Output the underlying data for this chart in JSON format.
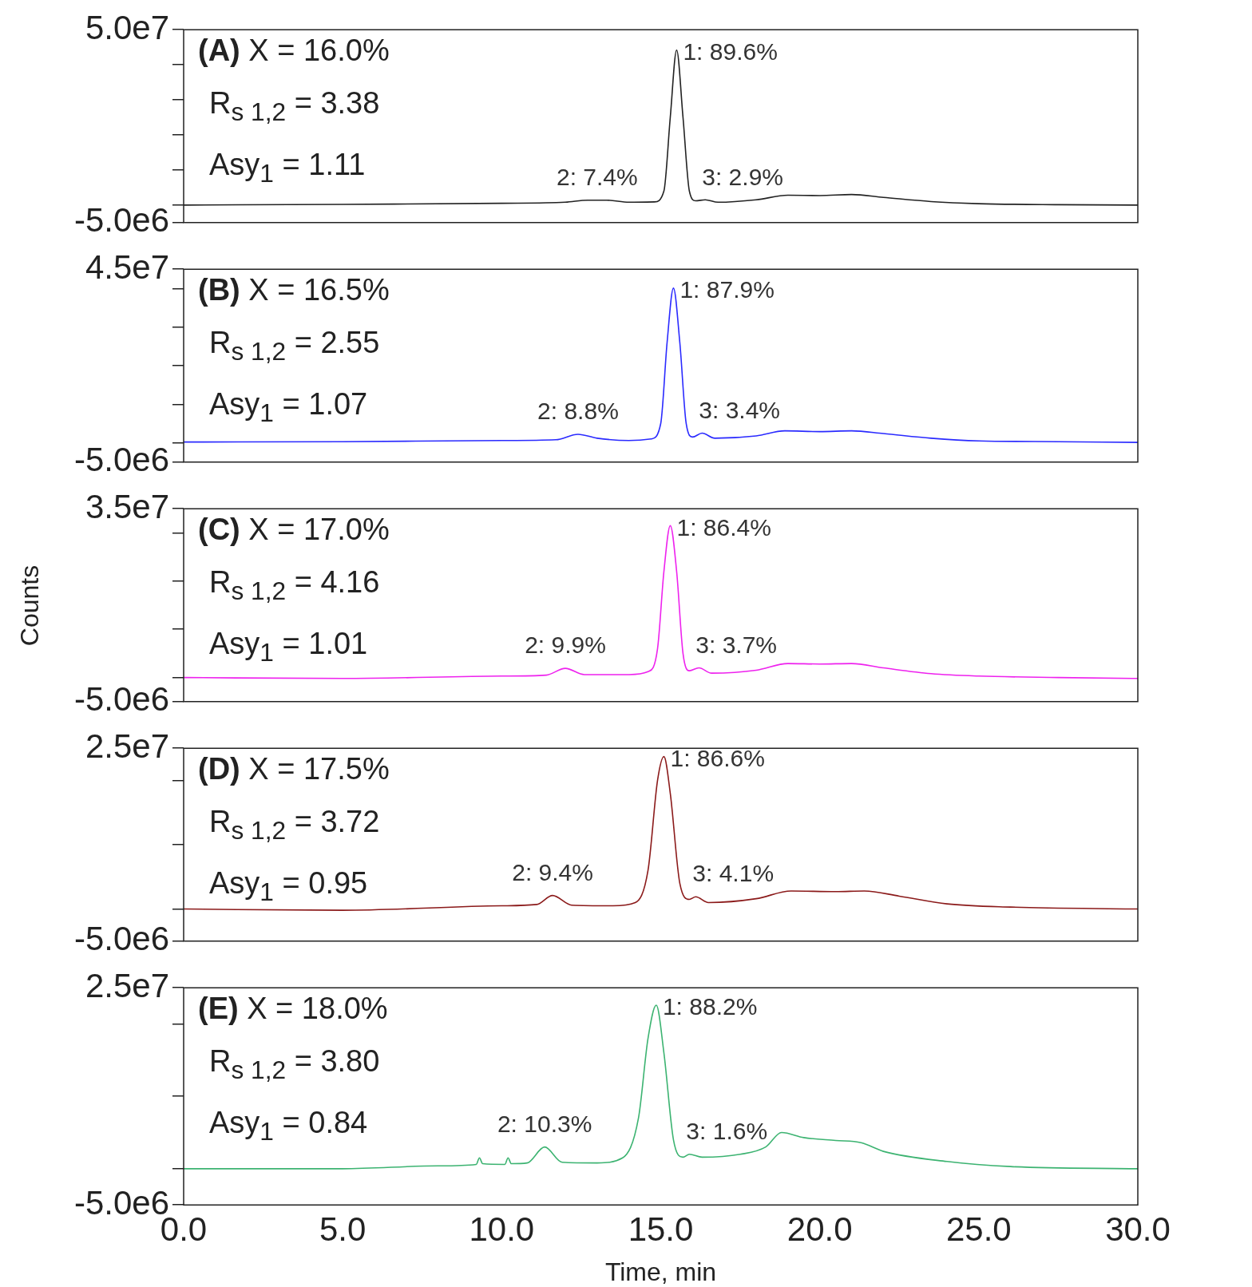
{
  "chart_data": [
    {
      "type": "line",
      "xlim": [
        0,
        30
      ],
      "ylim": [
        -5000000.0,
        50000000.0
      ],
      "yticks": [
        {
          "value": -5000000.0,
          "label": "-5.0e6"
        },
        {
          "value": 0,
          "label": null
        },
        {
          "value": 10000000.0,
          "label": null
        },
        {
          "value": 20000000.0,
          "label": null
        },
        {
          "value": 30000000.0,
          "label": null
        },
        {
          "value": 40000000.0,
          "label": null
        },
        {
          "value": 50000000.0,
          "label": "5.0e7"
        }
      ],
      "tick_labels": "y",
      "series": [
        {
          "color": "#222222",
          "x": [
            0,
            5,
            10,
            12,
            12.7,
            13.3,
            14,
            14.8,
            15.1,
            15.3,
            15.5,
            15.7,
            15.9,
            16.1,
            16.4,
            16.8,
            18,
            19,
            20,
            21,
            22,
            23.5,
            25,
            27.5,
            30
          ],
          "values": [
            0,
            200000.0,
            500000.0,
            800000.0,
            1400000.0,
            1400000.0,
            800000.0,
            900000.0,
            4000000.0,
            25000000.0,
            44200000.0,
            25000000.0,
            4000000.0,
            1200000.0,
            1500000.0,
            800000.0,
            1500000.0,
            2800000.0,
            2700000.0,
            3000000.0,
            2200000.0,
            1000000.0,
            400000.0,
            100000.0,
            0
          ]
        }
      ],
      "annotations": [
        "(A) X = 16.0%",
        "R$_{s 1,2}$ = 3.38",
        "Asy$_{1}$ = 1.11",
        {
          "text": "1: 89.6%",
          "x": 15.5,
          "y": 44200000.0
        },
        {
          "text": "2: 7.4%",
          "x": 13.0,
          "y": 1400000.0
        },
        {
          "text": "3: 2.9%",
          "x": 16.4,
          "y": 1500000.0
        }
      ]
    },
    {
      "type": "line",
      "xlim": [
        0,
        30
      ],
      "ylim": [
        -5000000.0,
        45000000.0
      ],
      "yticks": [
        {
          "value": -5000000.0,
          "label": "-5.0e6"
        },
        {
          "value": 0,
          "label": null
        },
        {
          "value": 10000000.0,
          "label": null
        },
        {
          "value": 20000000.0,
          "label": null
        },
        {
          "value": 30000000.0,
          "label": null
        },
        {
          "value": 40000000.0,
          "label": null
        },
        {
          "value": 45000000.0,
          "label": "4.5e7"
        }
      ],
      "tick_labels": "y",
      "series": [
        {
          "color": "#2a2aff",
          "x": [
            0,
            5,
            10,
            11.7,
            12.4,
            13,
            14,
            14.7,
            15.0,
            15.2,
            15.4,
            15.6,
            15.8,
            16.0,
            16.3,
            16.7,
            18,
            18.9,
            20,
            21,
            22,
            23.5,
            25,
            27.5,
            30
          ],
          "values": [
            200000.0,
            300000.0,
            600000.0,
            800000.0,
            2200000.0,
            1200000.0,
            600000.0,
            1000000.0,
            5000000.0,
            26000000.0,
            40100000.0,
            26000000.0,
            5000000.0,
            1500000.0,
            2500000.0,
            1200000.0,
            1800000.0,
            3100000.0,
            2900000.0,
            3100000.0,
            2400000.0,
            1200000.0,
            500000.0,
            300000.0,
            100000.0
          ]
        }
      ],
      "annotations": [
        "(B) X = 16.5%",
        "R$_{s 1,2}$ = 2.55",
        "Asy$_{1}$ = 1.07",
        {
          "text": "1: 87.9%",
          "x": 15.4,
          "y": 40100000.0
        },
        {
          "text": "2: 8.8%",
          "x": 12.4,
          "y": 2200000.0
        },
        {
          "text": "3: 3.4%",
          "x": 16.3,
          "y": 2500000.0
        }
      ]
    },
    {
      "type": "line",
      "ylabel": "Counts",
      "xlim": [
        0,
        30
      ],
      "ylim": [
        -5000000.0,
        35000000.0
      ],
      "yticks": [
        {
          "value": -5000000.0,
          "label": "-5.0e6"
        },
        {
          "value": 0,
          "label": null
        },
        {
          "value": 10000000.0,
          "label": null
        },
        {
          "value": 20000000.0,
          "label": null
        },
        {
          "value": 30000000.0,
          "label": null
        },
        {
          "value": 35000000.0,
          "label": "3.5e7"
        }
      ],
      "tick_labels": "y",
      "series": [
        {
          "color": "#ee22ee",
          "x": [
            0,
            5,
            10,
            11.4,
            12.0,
            12.6,
            14,
            14.6,
            14.9,
            15.1,
            15.3,
            15.5,
            15.7,
            15.9,
            16.2,
            16.6,
            18,
            19,
            20,
            21,
            22,
            23.5,
            25,
            27.5,
            30
          ],
          "values": [
            0,
            -200000.0,
            300000.0,
            500000.0,
            1900000.0,
            600000.0,
            600000.0,
            1200000.0,
            6000000.0,
            22000000.0,
            31500000.0,
            22000000.0,
            5000000.0,
            1400000.0,
            2000000.0,
            900000.0,
            1500000.0,
            2900000.0,
            2800000.0,
            2900000.0,
            2000000.0,
            800000.0,
            300000.0,
            0,
            -200000.0
          ]
        }
      ],
      "annotations": [
        "(C) X = 17.0%",
        "R$_{s 1,2}$ = 4.16",
        "Asy$_{1}$ = 1.01",
        {
          "text": "1: 86.4%",
          "x": 15.3,
          "y": 31500000.0
        },
        {
          "text": "2: 9.9%",
          "x": 12.0,
          "y": 1900000.0
        },
        {
          "text": "3: 3.7%",
          "x": 16.2,
          "y": 2000000.0
        }
      ]
    },
    {
      "type": "line",
      "xlim": [
        0,
        30
      ],
      "ylim": [
        -5000000.0,
        25000000.0
      ],
      "yticks": [
        {
          "value": -5000000.0,
          "label": "-5.0e6"
        },
        {
          "value": 0,
          "label": null
        },
        {
          "value": 10000000.0,
          "label": null
        },
        {
          "value": 20000000.0,
          "label": null
        },
        {
          "value": 25000000.0,
          "label": "2.5e7"
        }
      ],
      "tick_labels": "y",
      "series": [
        {
          "color": "#8b1a1a",
          "x": [
            0,
            5,
            10,
            11.1,
            11.6,
            12.2,
            13.5,
            14.2,
            14.6,
            14.9,
            15.1,
            15.3,
            15.6,
            15.9,
            16.1,
            16.5,
            18,
            19.1,
            20.5,
            21.4,
            22.5,
            24,
            26,
            30
          ],
          "values": [
            0,
            -200000.0,
            500000.0,
            700000.0,
            2100000.0,
            600000.0,
            500000.0,
            1000000.0,
            6000000.0,
            20000000.0,
            23700000.0,
            18000000.0,
            4000000.0,
            1500000.0,
            1900000.0,
            1000000.0,
            1600000.0,
            2800000.0,
            2700000.0,
            2800000.0,
            2000000.0,
            800000.0,
            300000.0,
            0
          ]
        }
      ],
      "annotations": [
        "(D) X = 17.5%",
        "R$_{s 1,2}$ = 3.72",
        "Asy$_{1}$ = 0.95",
        {
          "text": "1: 86.6%",
          "x": 15.1,
          "y": 23700000.0
        },
        {
          "text": "2: 9.4%",
          "x": 11.6,
          "y": 2100000.0
        },
        {
          "text": "3: 4.1%",
          "x": 16.1,
          "y": 1900000.0
        }
      ]
    },
    {
      "type": "line",
      "xlabel": "Time, min",
      "xlim": [
        0,
        30
      ],
      "xticks": [
        {
          "value": 0,
          "label": "0.0"
        },
        {
          "value": 5,
          "label": "5.0"
        },
        {
          "value": 10,
          "label": "10.0"
        },
        {
          "value": 15,
          "label": "15.0"
        },
        {
          "value": 20,
          "label": "20.0"
        },
        {
          "value": 25,
          "label": "25.0"
        },
        {
          "value": 30,
          "label": "30.0"
        }
      ],
      "ylim": [
        -5000000.0,
        25000000.0
      ],
      "yticks": [
        {
          "value": -5000000.0,
          "label": "-5.0e6"
        },
        {
          "value": 0,
          "label": null
        },
        {
          "value": 10000000.0,
          "label": null
        },
        {
          "value": 20000000.0,
          "label": null
        },
        {
          "value": 25000000.0,
          "label": "2.5e7"
        }
      ],
      "series": [
        {
          "color": "#3cb371",
          "x": [
            0,
            5,
            8,
            9.2,
            9.3,
            9.4,
            10.1,
            10.2,
            10.3,
            10.8,
            11.35,
            11.9,
            13,
            13.8,
            14.3,
            14.6,
            14.86,
            15.1,
            15.4,
            15.7,
            15.9,
            16.3,
            17.5,
            18.3,
            18.8,
            19.5,
            20.5,
            21.3,
            22,
            24,
            26,
            30
          ],
          "values": [
            0,
            0,
            400000.0,
            600000.0,
            1500000.0,
            700000.0,
            600000.0,
            1500000.0,
            700000.0,
            800000.0,
            3000000.0,
            900000.0,
            800000.0,
            1500000.0,
            7000000.0,
            18000000.0,
            22600000.0,
            16000000.0,
            4000000.0,
            1600000.0,
            2000000.0,
            1600000.0,
            2000000.0,
            3000000.0,
            5000000.0,
            4300000.0,
            3900000.0,
            3600000.0,
            2400000.0,
            1000000.0,
            300000.0,
            0
          ]
        }
      ],
      "annotations": [
        "(E) X = 18.0%",
        "R$_{s 1,2}$ = 3.80",
        "Asy$_{1}$ = 0.84",
        {
          "text": "1: 88.2%",
          "x": 14.86,
          "y": 22600000.0
        },
        {
          "text": "2: 10.3%",
          "x": 11.35,
          "y": 3000000.0
        },
        {
          "text": "3: 1.6%",
          "x": 15.9,
          "y": 2000000.0
        }
      ]
    }
  ]
}
